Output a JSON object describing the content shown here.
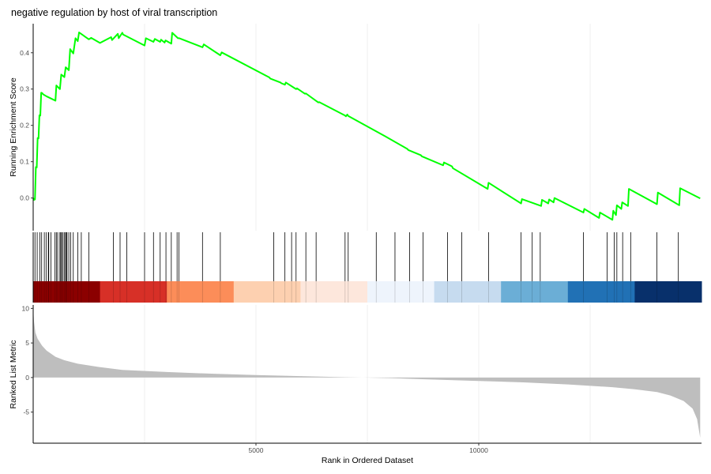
{
  "chart_data": {
    "type": "line",
    "title": "negative regulation by host of viral transcription",
    "xlabel": "Rank in Ordered Dataset",
    "xlim": [
      0,
      15000
    ],
    "x_ticks": [
      5000,
      10000
    ],
    "x_tick_labels": [
      "5000",
      "10000"
    ],
    "grid": true,
    "colors": {
      "curve": "#00ff00",
      "metric_fill": "#bebebe",
      "gradient": [
        "#8b0000",
        "#d73027",
        "#fc8d59",
        "#fdd0b0",
        "#fde7dc",
        "#eef4fc",
        "#c6dbef",
        "#6baed6",
        "#2171b5",
        "#08306b"
      ]
    },
    "panels": {
      "running_score": {
        "ylabel": "Running Enrichment Score",
        "ylim": [
          -0.09,
          0.48
        ],
        "y_ticks": [
          0.0,
          0.1,
          0.2,
          0.3,
          0.4
        ],
        "y_tick_labels": [
          "0.0",
          "0.1",
          "0.2",
          "0.3",
          "0.4"
        ],
        "series": [
          {
            "x": [
              0,
              20,
              40,
              60,
              80,
              100,
              120,
              140,
              160,
              180,
              200,
              230,
              300,
              400,
              500,
              520,
              600,
              630,
              700,
              730,
              800,
              830,
              900,
              950,
              1000,
              1030,
              1100,
              1180,
              1250,
              1300,
              1500,
              1750,
              1770,
              1900,
              1920,
              2000,
              2020,
              2500,
              2530,
              2700,
              2730,
              2850,
              2870,
              2950,
              2970,
              3100,
              3120,
              3250,
              3280,
              3800,
              3830,
              4200,
              4230,
              5300,
              5320,
              5550,
              5570,
              5650,
              5670,
              5900,
              5920,
              6100,
              6120,
              6400,
              6420,
              7000,
              7020,
              7050,
              7070,
              7900,
              8400,
              8420,
              8700,
              8720,
              9200,
              9220,
              9400,
              9420,
              10200,
              10220,
              10950,
              10970,
              11400,
              11420,
              11560,
              11580,
              11680,
              11700,
              12350,
              12370,
              12700,
              12720,
              13000,
              13020,
              13080,
              13100,
              13200,
              13220,
              13350,
              13370,
              14000,
              14020,
              14500,
              14520,
              14970
            ],
            "y": [
              0.0,
              -0.005,
              -0.004,
              0.085,
              0.084,
              0.165,
              0.164,
              0.228,
              0.227,
              0.29,
              0.289,
              0.285,
              0.28,
              0.274,
              0.268,
              0.31,
              0.3,
              0.34,
              0.333,
              0.36,
              0.352,
              0.41,
              0.398,
              0.44,
              0.432,
              0.456,
              0.45,
              0.443,
              0.437,
              0.441,
              0.427,
              0.443,
              0.435,
              0.452,
              0.44,
              0.455,
              0.45,
              0.42,
              0.44,
              0.43,
              0.438,
              0.43,
              0.436,
              0.428,
              0.434,
              0.425,
              0.455,
              0.44,
              0.44,
              0.415,
              0.423,
              0.393,
              0.401,
              0.332,
              0.329,
              0.318,
              0.316,
              0.312,
              0.318,
              0.3,
              0.302,
              0.287,
              0.288,
              0.263,
              0.264,
              0.227,
              0.225,
              0.23,
              0.226,
              0.17,
              0.135,
              0.132,
              0.118,
              0.115,
              0.09,
              0.098,
              0.087,
              0.082,
              0.025,
              0.042,
              -0.015,
              -0.003,
              -0.022,
              -0.005,
              -0.015,
              -0.004,
              -0.012,
              0.0,
              -0.04,
              -0.03,
              -0.055,
              -0.04,
              -0.06,
              -0.035,
              -0.047,
              -0.02,
              -0.03,
              -0.012,
              -0.022,
              0.025,
              -0.017,
              0.015,
              -0.02,
              0.027,
              -0.001
            ]
          }
        ]
      },
      "hit_positions": [
        40,
        90,
        150,
        190,
        250,
        290,
        340,
        350,
        400,
        490,
        520,
        550,
        600,
        620,
        640,
        670,
        700,
        730,
        740,
        760,
        800,
        840,
        900,
        1000,
        1080,
        1250,
        1800,
        1950,
        2100,
        2500,
        2700,
        2850,
        2980,
        3100,
        3230,
        3270,
        3800,
        4200,
        5400,
        5650,
        5800,
        5900,
        6120,
        6350,
        7000,
        7070,
        7700,
        8120,
        8450,
        8750,
        9300,
        9620,
        10220,
        10950,
        11200,
        11380,
        12350,
        12880,
        13040,
        13100,
        13230,
        13410,
        14000,
        14480
      ],
      "metric": {
        "ylabel": "Ranked List Metric",
        "ylim": [
          -9.5,
          10.5
        ],
        "y_ticks": [
          -5,
          0,
          5,
          10
        ],
        "y_tick_labels": [
          "-5",
          "0",
          "5",
          "10"
        ],
        "x": [
          0,
          20,
          50,
          100,
          200,
          300,
          500,
          700,
          1000,
          1500,
          2000,
          3000,
          4000,
          5000,
          6000,
          7000,
          7400,
          8000,
          9000,
          10000,
          11000,
          12000,
          13000,
          13500,
          14000,
          14300,
          14600,
          14800,
          14900,
          14970
        ],
        "y": [
          10,
          8.0,
          6.5,
          5.6,
          4.6,
          3.9,
          3.0,
          2.5,
          2.0,
          1.5,
          1.1,
          0.8,
          0.55,
          0.35,
          0.2,
          0.05,
          0.0,
          -0.08,
          -0.3,
          -0.5,
          -0.7,
          -1.0,
          -1.4,
          -1.7,
          -2.1,
          -2.6,
          -3.4,
          -4.5,
          -6.0,
          -8.7
        ]
      }
    }
  }
}
